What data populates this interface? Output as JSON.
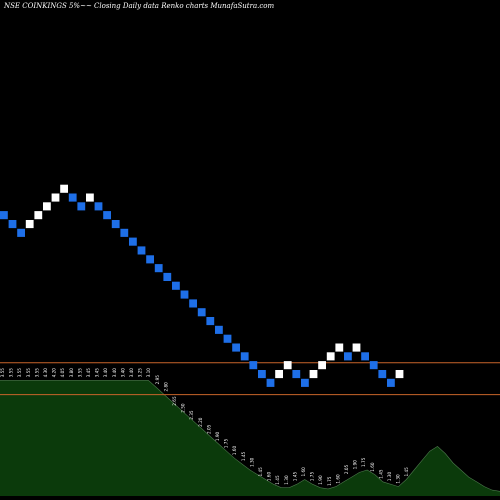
{
  "chart_data": {
    "type": "renko",
    "title": "NSE COINKINGS 5%~~ Closing Daily data Renko charts MunafaSutra.com",
    "colors": {
      "background": "#000000",
      "up_brick": "#ffffff",
      "down_brick": "#1e6fe8",
      "level_line": "#c8642a",
      "volume_fill": "#0b3a0b",
      "volume_stroke": "#8fcf8f",
      "label_text": "#ffffff"
    },
    "bricks": [
      {
        "dir": "down",
        "y": 4.71
      },
      {
        "dir": "down",
        "y": 4.53
      },
      {
        "dir": "down",
        "y": 4.35
      },
      {
        "dir": "up",
        "y": 4.53
      },
      {
        "dir": "up",
        "y": 4.71
      },
      {
        "dir": "up",
        "y": 4.89
      },
      {
        "dir": "up",
        "y": 5.07
      },
      {
        "dir": "up",
        "y": 5.25
      },
      {
        "dir": "down",
        "y": 5.07
      },
      {
        "dir": "down",
        "y": 4.89
      },
      {
        "dir": "up",
        "y": 5.07
      },
      {
        "dir": "down",
        "y": 4.89
      },
      {
        "dir": "down",
        "y": 4.71
      },
      {
        "dir": "down",
        "y": 4.53
      },
      {
        "dir": "down",
        "y": 4.35
      },
      {
        "dir": "down",
        "y": 4.17
      },
      {
        "dir": "down",
        "y": 3.99
      },
      {
        "dir": "down",
        "y": 3.81
      },
      {
        "dir": "down",
        "y": 3.63
      },
      {
        "dir": "down",
        "y": 3.45
      },
      {
        "dir": "down",
        "y": 3.27
      },
      {
        "dir": "down",
        "y": 3.09
      },
      {
        "dir": "down",
        "y": 2.91
      },
      {
        "dir": "down",
        "y": 2.73
      },
      {
        "dir": "down",
        "y": 2.55
      },
      {
        "dir": "down",
        "y": 2.37
      },
      {
        "dir": "down",
        "y": 2.19
      },
      {
        "dir": "down",
        "y": 2.01
      },
      {
        "dir": "down",
        "y": 1.83
      },
      {
        "dir": "down",
        "y": 1.65
      },
      {
        "dir": "down",
        "y": 1.47
      },
      {
        "dir": "down",
        "y": 1.29
      },
      {
        "dir": "up",
        "y": 1.47
      },
      {
        "dir": "up",
        "y": 1.65
      },
      {
        "dir": "down",
        "y": 1.47
      },
      {
        "dir": "down",
        "y": 1.29
      },
      {
        "dir": "up",
        "y": 1.47
      },
      {
        "dir": "up",
        "y": 1.65
      },
      {
        "dir": "up",
        "y": 1.83
      },
      {
        "dir": "up",
        "y": 2.01
      },
      {
        "dir": "down",
        "y": 1.83
      },
      {
        "dir": "up",
        "y": 2.01
      },
      {
        "dir": "down",
        "y": 1.83
      },
      {
        "dir": "down",
        "y": 1.65
      },
      {
        "dir": "down",
        "y": 1.47
      },
      {
        "dir": "down",
        "y": 1.29
      },
      {
        "dir": "up",
        "y": 1.47
      }
    ],
    "ylim": [
      -1.1,
      9.1
    ],
    "level_lines": [
      1.7,
      1.05
    ],
    "volume_labels": [
      "3.55",
      "3.55",
      "3.55",
      "3.55",
      "3.55",
      "4.30",
      "4.20",
      "4.05",
      "3.80",
      "3.55",
      "3.45",
      "3.45",
      "3.40",
      "3.40",
      "3.40",
      "3.40",
      "3.25",
      "3.10",
      "2.95",
      "2.80",
      "2.65",
      "2.50",
      "2.35",
      "2.20",
      "2.05",
      "1.90",
      "1.75",
      "1.60",
      "1.45",
      "1.30",
      "1.45",
      "1.60",
      "1.45",
      "1.30",
      "1.45",
      "1.60",
      "1.75",
      "1.90",
      "1.75",
      "1.60",
      "2.05",
      "1.90",
      "1.75",
      "1.60",
      "1.45",
      "1.30",
      "1.30",
      "1.45"
    ],
    "volume_fractions": [
      0.98,
      0.98,
      0.98,
      0.98,
      0.98,
      0.98,
      0.98,
      0.98,
      0.98,
      0.98,
      0.98,
      0.98,
      0.98,
      0.98,
      0.98,
      0.98,
      0.98,
      0.98,
      0.98,
      0.98,
      0.92,
      0.86,
      0.8,
      0.74,
      0.68,
      0.62,
      0.56,
      0.5,
      0.44,
      0.38,
      0.32,
      0.27,
      0.22,
      0.18,
      0.14,
      0.1,
      0.07,
      0.07,
      0.1,
      0.14,
      0.1,
      0.07,
      0.06,
      0.08,
      0.12,
      0.16,
      0.2,
      0.22,
      0.18,
      0.12,
      0.1,
      0.08,
      0.14,
      0.22,
      0.3,
      0.38,
      0.42,
      0.36,
      0.28,
      0.22,
      0.16,
      0.12,
      0.08,
      0.05,
      0.04
    ]
  }
}
